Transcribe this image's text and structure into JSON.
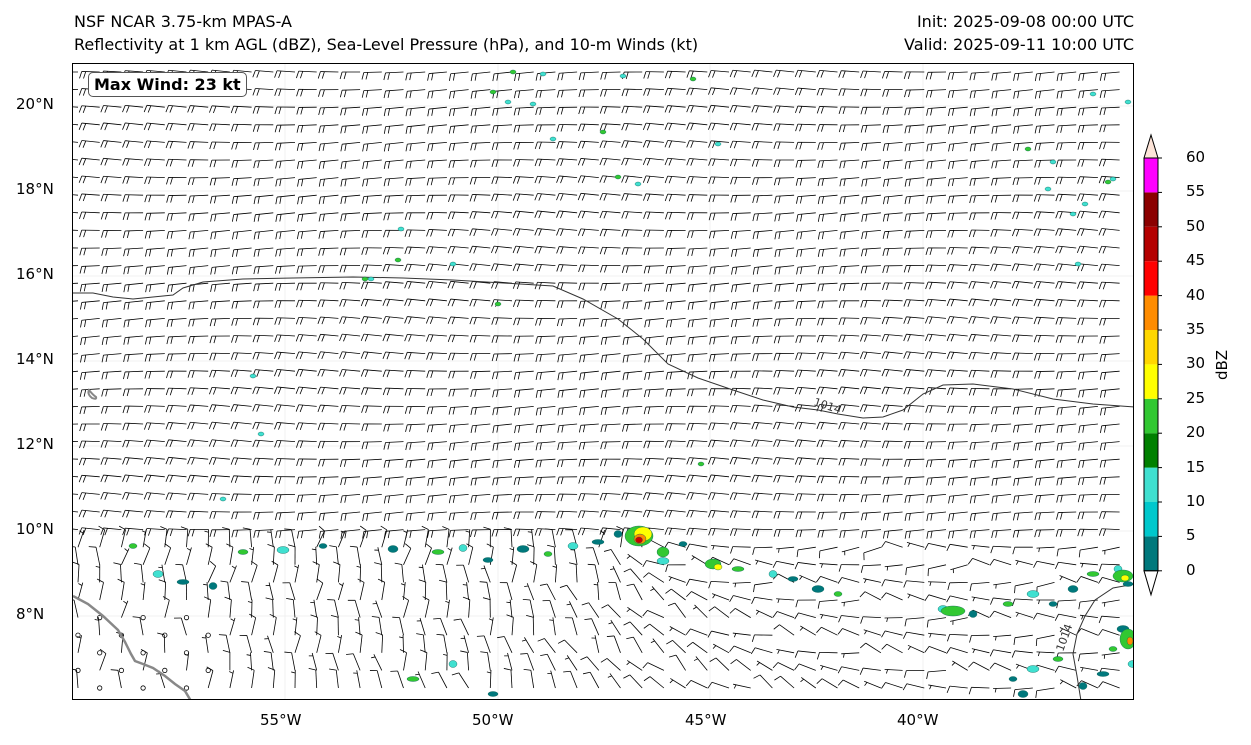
{
  "header": {
    "model": "NSF NCAR 3.75-km MPAS-A",
    "fields": "Reflectivity at 1 km AGL (dBZ), Sea-Level Pressure (hPa), and 10-m Winds (kt)",
    "init": "Init: 2025-09-08 00:00 UTC",
    "valid": "Valid: 2025-09-11 10:00 UTC"
  },
  "badge": {
    "max_wind": "Max Wind: 23 kt"
  },
  "axes": {
    "lat_labels": [
      "20°N",
      "18°N",
      "16°N",
      "14°N",
      "12°N",
      "10°N",
      "8°N"
    ],
    "lon_labels": [
      "55°W",
      "50°W",
      "45°W",
      "40°W"
    ]
  },
  "isobar": {
    "label": "1014",
    "label_east": "1014"
  },
  "colorbar": {
    "unit": "dBZ",
    "ticks": [
      "0",
      "5",
      "10",
      "15",
      "20",
      "25",
      "30",
      "35",
      "40",
      "45",
      "50",
      "55",
      "60"
    ],
    "colors": [
      "#00787c",
      "#00c8cc",
      "#40e0d0",
      "#008000",
      "#32c832",
      "#ffff00",
      "#ffd700",
      "#ff8c00",
      "#ff0000",
      "#b40000",
      "#8b0000",
      "#ff00ff",
      "#fde4d8"
    ]
  },
  "colors": {
    "coast": "#888888",
    "barb": "#000000",
    "isobar": "#333333"
  }
}
